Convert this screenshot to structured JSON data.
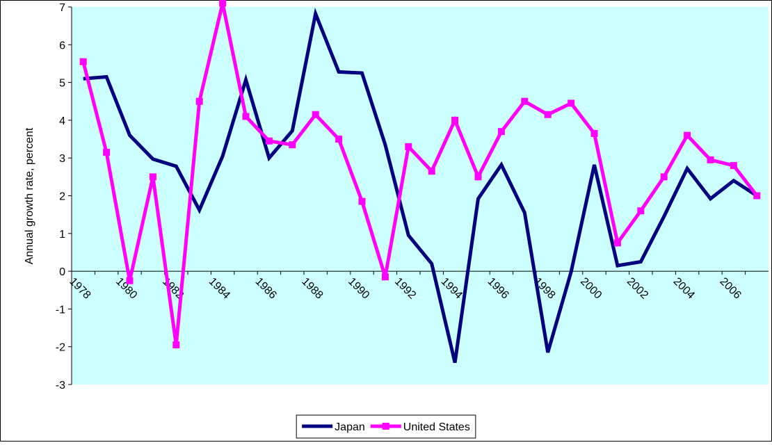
{
  "chart_data": {
    "type": "line",
    "y_label": "Annual growth rate, percent",
    "categories": [
      "1978",
      null,
      "1980",
      null,
      "1982",
      null,
      "1984",
      null,
      "1986",
      null,
      "1988",
      null,
      "1990",
      null,
      "1992",
      null,
      "1994",
      null,
      "1996",
      null,
      "1998",
      null,
      "2000",
      null,
      "2002",
      null,
      "2004",
      null,
      "2006",
      null
    ],
    "series": [
      {
        "name": "Japan",
        "color": "#000080",
        "markers": false,
        "values": [
          5.1,
          5.15,
          3.6,
          2.97,
          2.78,
          1.62,
          3.05,
          5.07,
          3.0,
          3.72,
          6.82,
          5.28,
          5.25,
          3.35,
          0.95,
          0.2,
          -2.42,
          1.92,
          2.82,
          1.55,
          -2.15,
          -0.02,
          2.82,
          0.15,
          0.25,
          1.45,
          2.72,
          1.92,
          2.4,
          2.0
        ]
      },
      {
        "name": "United States",
        "color": "#ff00ff",
        "markers": true,
        "values": [
          5.55,
          3.15,
          -0.25,
          2.5,
          -1.95,
          4.5,
          7.1,
          4.1,
          3.45,
          3.35,
          4.15,
          3.5,
          1.85,
          -0.15,
          3.3,
          2.65,
          4.0,
          2.5,
          3.7,
          4.5,
          4.15,
          4.45,
          3.65,
          0.75,
          1.6,
          2.5,
          3.6,
          2.95,
          2.8,
          2.0
        ]
      }
    ],
    "ylim": [
      -3,
      7
    ],
    "yticks": [
      -3,
      -2,
      -1,
      0,
      1,
      2,
      3,
      4,
      5,
      6,
      7
    ],
    "plot_background": "#ccffff",
    "legend": "bottom"
  }
}
